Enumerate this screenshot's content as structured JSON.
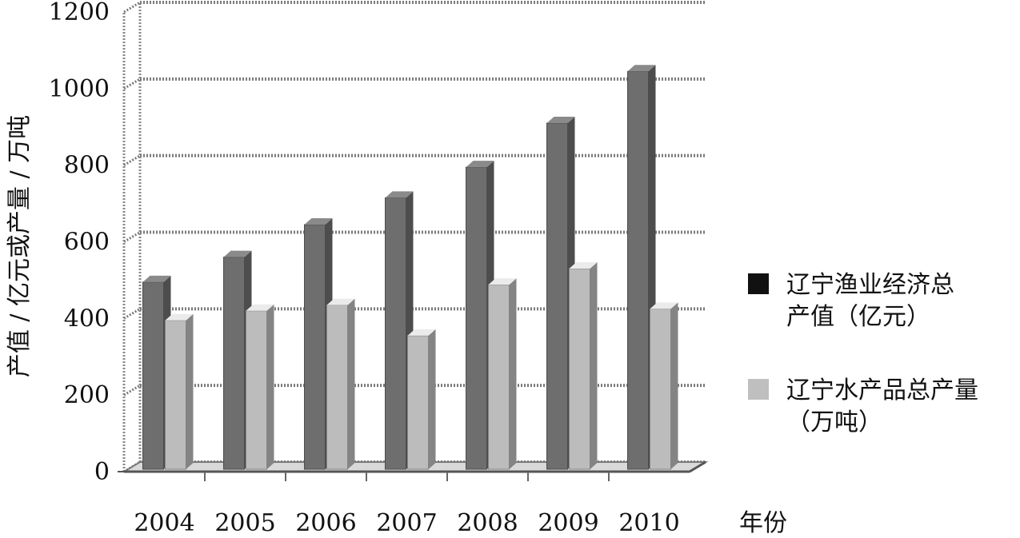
{
  "chart_data": {
    "type": "bar",
    "title": "",
    "xlabel": "年份",
    "ylabel": "产值 / 亿元或产量 / 万吨",
    "categories": [
      "2004",
      "2005",
      "2006",
      "2007",
      "2008",
      "2009",
      "2010"
    ],
    "series": [
      {
        "name_lines": [
          "辽宁渔业经济总",
          "产值（亿元）"
        ],
        "values": [
          495,
          560,
          645,
          715,
          795,
          910,
          1045
        ],
        "color": "#6e6e6e"
      },
      {
        "name_lines": [
          "辽宁水产品总产量",
          "（万吨）"
        ],
        "values": [
          395,
          420,
          435,
          355,
          488,
          530,
          425
        ],
        "color": "#bcbcbc"
      }
    ],
    "yticks": [
      "0",
      "200",
      "400",
      "600",
      "800",
      "1000",
      "1200"
    ],
    "ylim": [
      0,
      1200
    ],
    "grid": true,
    "legend": "right",
    "legend_swatch_colors": [
      "#111111",
      "#bfbfbf"
    ]
  }
}
